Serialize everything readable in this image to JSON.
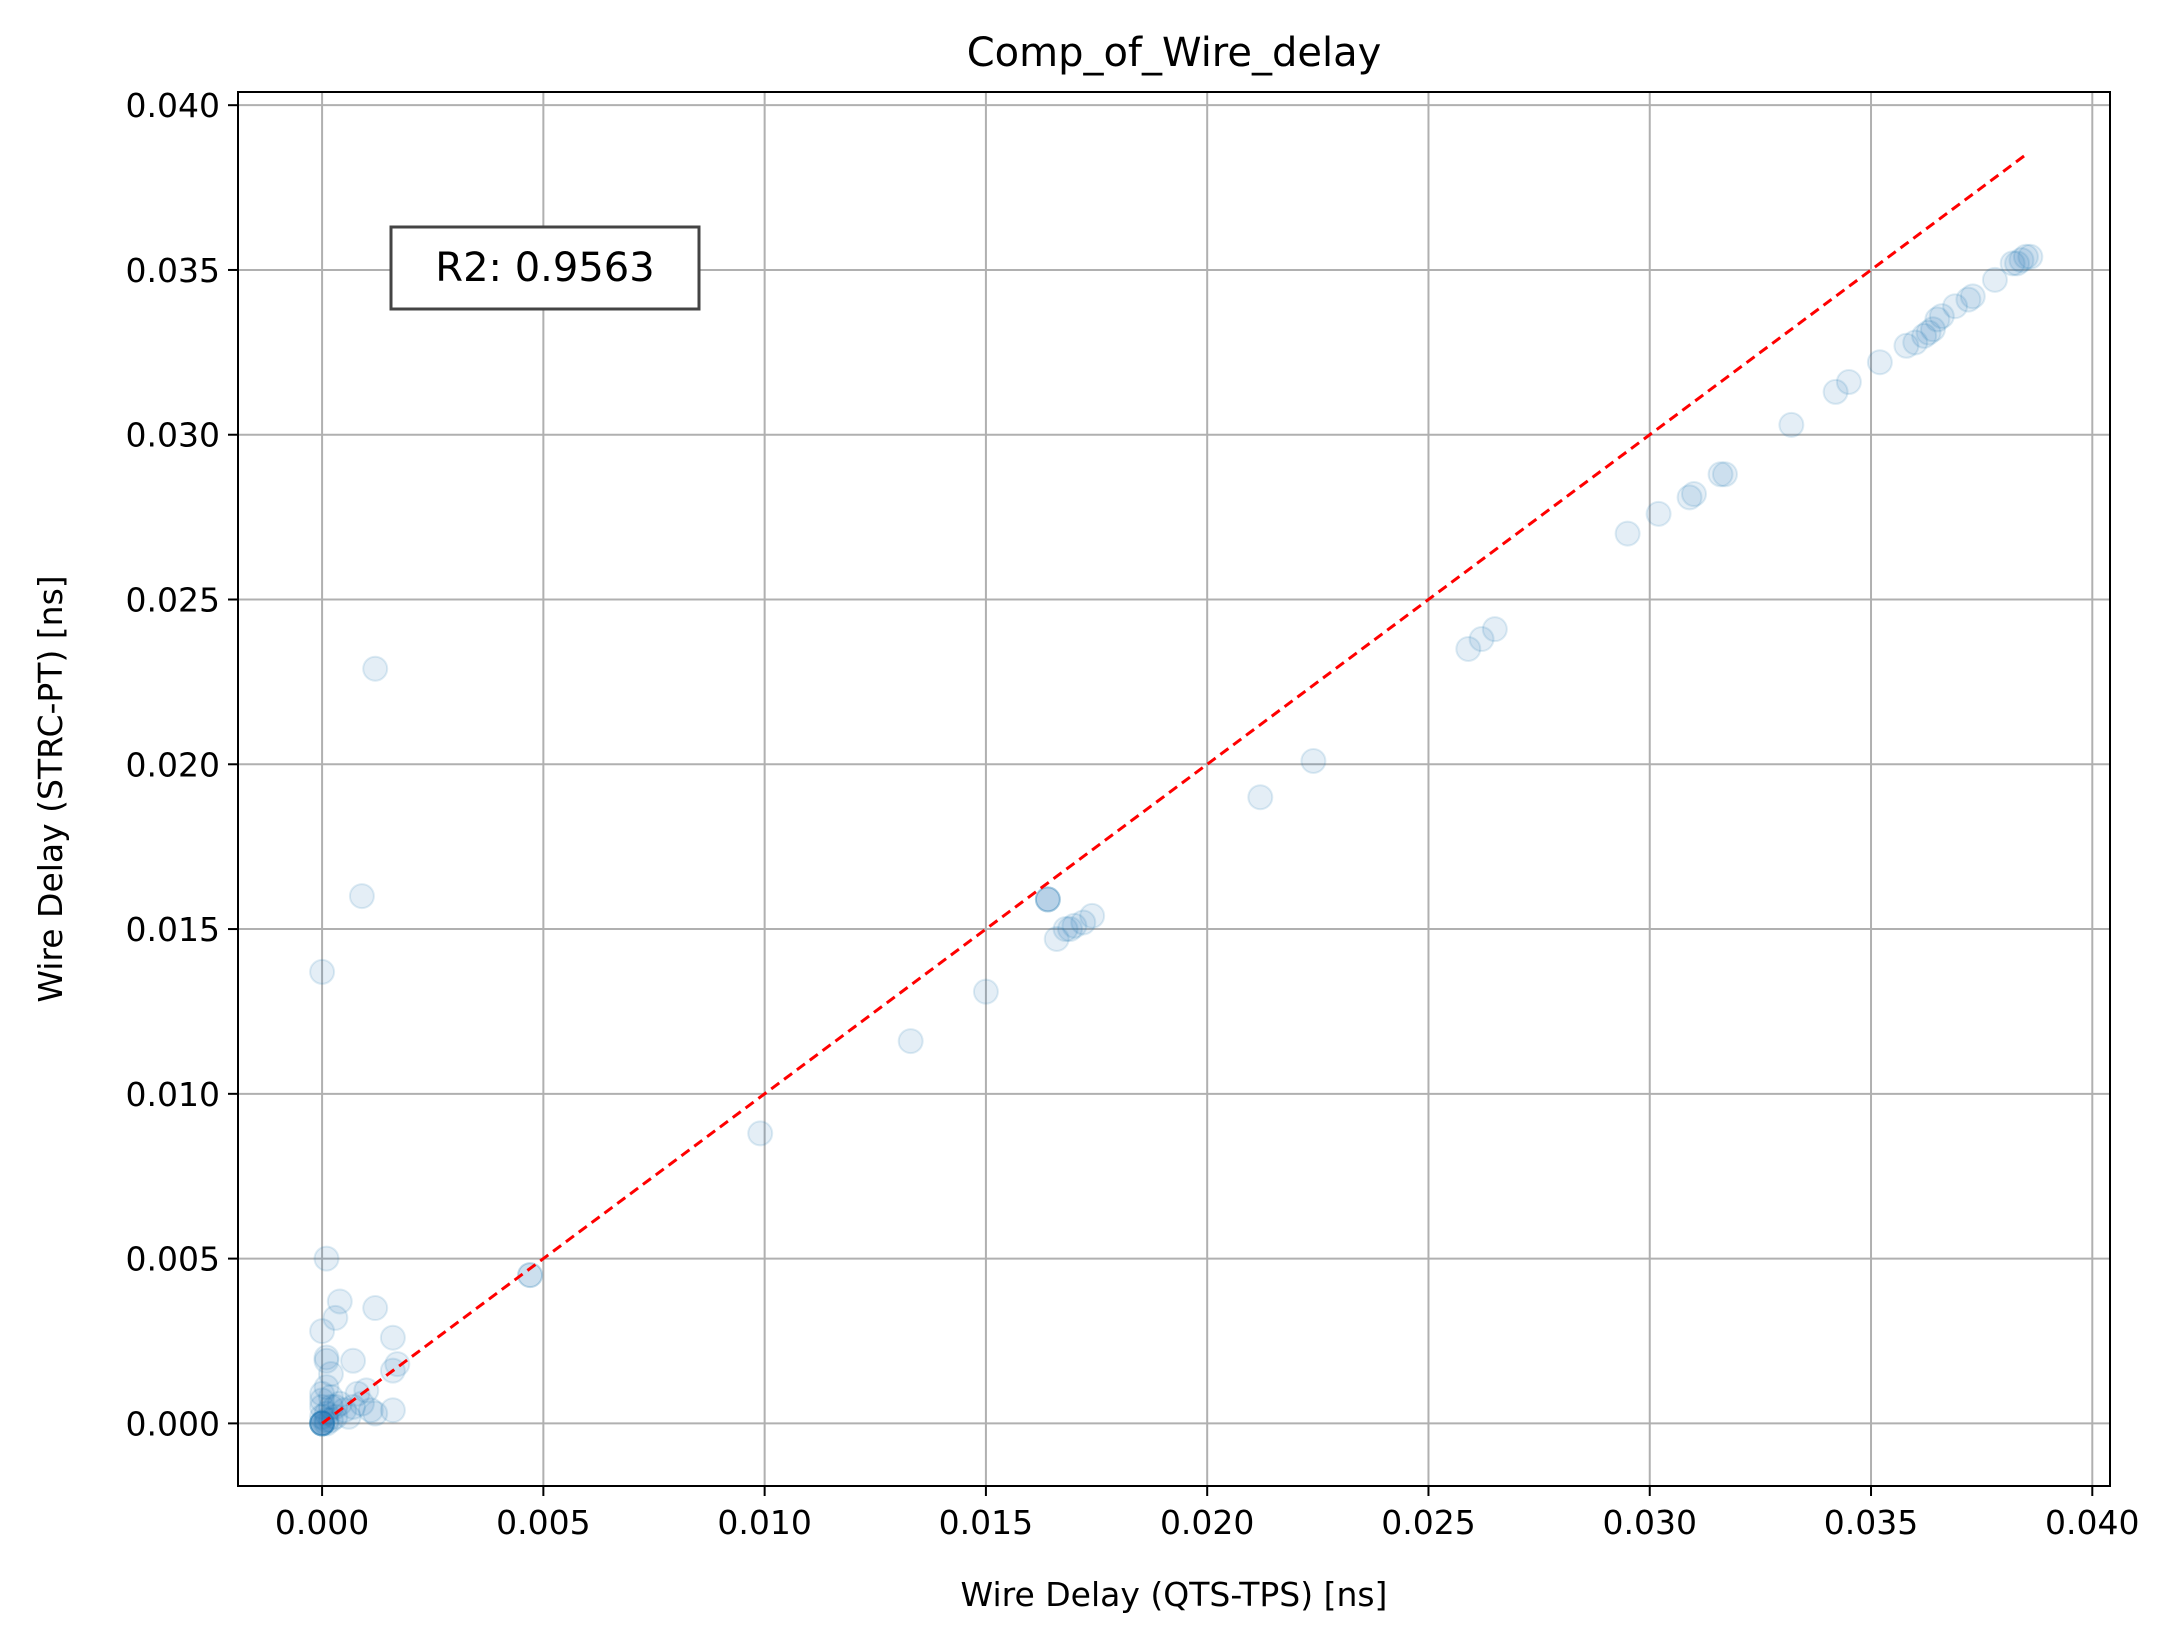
{
  "chart_data": {
    "type": "scatter",
    "title": "Comp_of_Wire_delay",
    "xlabel": "Wire Delay (QTS-TPS) [ns]",
    "ylabel": "Wire Delay (STRC-PT) [ns]",
    "xlim": [
      -0.0019,
      0.0404
    ],
    "ylim": [
      -0.0019,
      0.0404
    ],
    "xticks": [
      "0.000",
      "0.005",
      "0.010",
      "0.015",
      "0.020",
      "0.025",
      "0.030",
      "0.035",
      "0.040"
    ],
    "yticks": [
      "0.000",
      "0.005",
      "0.010",
      "0.015",
      "0.020",
      "0.025",
      "0.030",
      "0.035",
      "0.040"
    ],
    "grid": true,
    "colors": {
      "points": "#1f77b4",
      "reference_line": "#ff0000",
      "grid": "#b0b0b0"
    },
    "annotation": "R2: 0.9563",
    "reference_line": {
      "x": [
        0.0,
        0.0385
      ],
      "y": [
        0.0,
        0.0385
      ],
      "style": "dashed"
    },
    "series": [
      {
        "values": [
          [
            0.0,
            0.0
          ],
          [
            0.0,
            0.0
          ],
          [
            0.0,
            0.0
          ],
          [
            0.0,
            0.0
          ],
          [
            0.0,
            0.0
          ],
          [
            0.0,
            0.0
          ],
          [
            0.0001,
            0.0
          ],
          [
            0.0001,
            0.0001
          ],
          [
            0.0002,
            0.0001
          ],
          [
            0.0003,
            0.0002
          ],
          [
            0.0,
            0.0002
          ],
          [
            0.0001,
            0.0003
          ],
          [
            0.0,
            0.0005
          ],
          [
            0.0002,
            0.0005
          ],
          [
            0.0004,
            0.0006
          ],
          [
            0.0,
            0.0007
          ],
          [
            0.0002,
            0.0008
          ],
          [
            0.0003,
            0.0005
          ],
          [
            0.0005,
            0.0004
          ],
          [
            0.0006,
            0.0002
          ],
          [
            0.0007,
            0.0005
          ],
          [
            0.0009,
            0.0006
          ],
          [
            0.0011,
            0.0004
          ],
          [
            0.0012,
            0.0003
          ],
          [
            0.0016,
            0.0004
          ],
          [
            0.0008,
            0.0009
          ],
          [
            0.001,
            0.001
          ],
          [
            0.0001,
            0.0011
          ],
          [
            0.0,
            0.0009
          ],
          [
            0.0002,
            0.0015
          ],
          [
            0.0007,
            0.0019
          ],
          [
            0.0001,
            0.0019
          ],
          [
            0.0001,
            0.002
          ],
          [
            0.0016,
            0.0016
          ],
          [
            0.0017,
            0.0018
          ],
          [
            0.0016,
            0.0026
          ],
          [
            0.0,
            0.0028
          ],
          [
            0.0003,
            0.0032
          ],
          [
            0.0004,
            0.0037
          ],
          [
            0.0012,
            0.0035
          ],
          [
            0.0001,
            0.005
          ],
          [
            0.0,
            0.0137
          ],
          [
            0.0009,
            0.016
          ],
          [
            0.0012,
            0.0229
          ],
          [
            0.0047,
            0.0045
          ],
          [
            0.0047,
            0.0045
          ],
          [
            0.0099,
            0.0088
          ],
          [
            0.0133,
            0.0116
          ],
          [
            0.015,
            0.0131
          ],
          [
            0.0164,
            0.0159
          ],
          [
            0.0164,
            0.0159
          ],
          [
            0.0164,
            0.0159
          ],
          [
            0.0166,
            0.0147
          ],
          [
            0.0168,
            0.015
          ],
          [
            0.0169,
            0.015
          ],
          [
            0.017,
            0.0151
          ],
          [
            0.0172,
            0.0152
          ],
          [
            0.0174,
            0.0154
          ],
          [
            0.0212,
            0.019
          ],
          [
            0.0224,
            0.0201
          ],
          [
            0.0259,
            0.0235
          ],
          [
            0.0262,
            0.0238
          ],
          [
            0.0265,
            0.0241
          ],
          [
            0.0295,
            0.027
          ],
          [
            0.0302,
            0.0276
          ],
          [
            0.0309,
            0.0281
          ],
          [
            0.031,
            0.0282
          ],
          [
            0.0316,
            0.0288
          ],
          [
            0.0317,
            0.0288
          ],
          [
            0.0332,
            0.0303
          ],
          [
            0.0342,
            0.0313
          ],
          [
            0.0345,
            0.0316
          ],
          [
            0.0352,
            0.0322
          ],
          [
            0.0358,
            0.0327
          ],
          [
            0.036,
            0.0328
          ],
          [
            0.0362,
            0.033
          ],
          [
            0.0363,
            0.0331
          ],
          [
            0.0364,
            0.0332
          ],
          [
            0.0365,
            0.0335
          ],
          [
            0.0366,
            0.0336
          ],
          [
            0.0369,
            0.0339
          ],
          [
            0.0372,
            0.0341
          ],
          [
            0.0373,
            0.0342
          ],
          [
            0.0378,
            0.0347
          ],
          [
            0.0382,
            0.0352
          ],
          [
            0.0383,
            0.0352
          ],
          [
            0.0384,
            0.0353
          ],
          [
            0.0385,
            0.0354
          ],
          [
            0.0386,
            0.0354
          ]
        ]
      }
    ]
  }
}
